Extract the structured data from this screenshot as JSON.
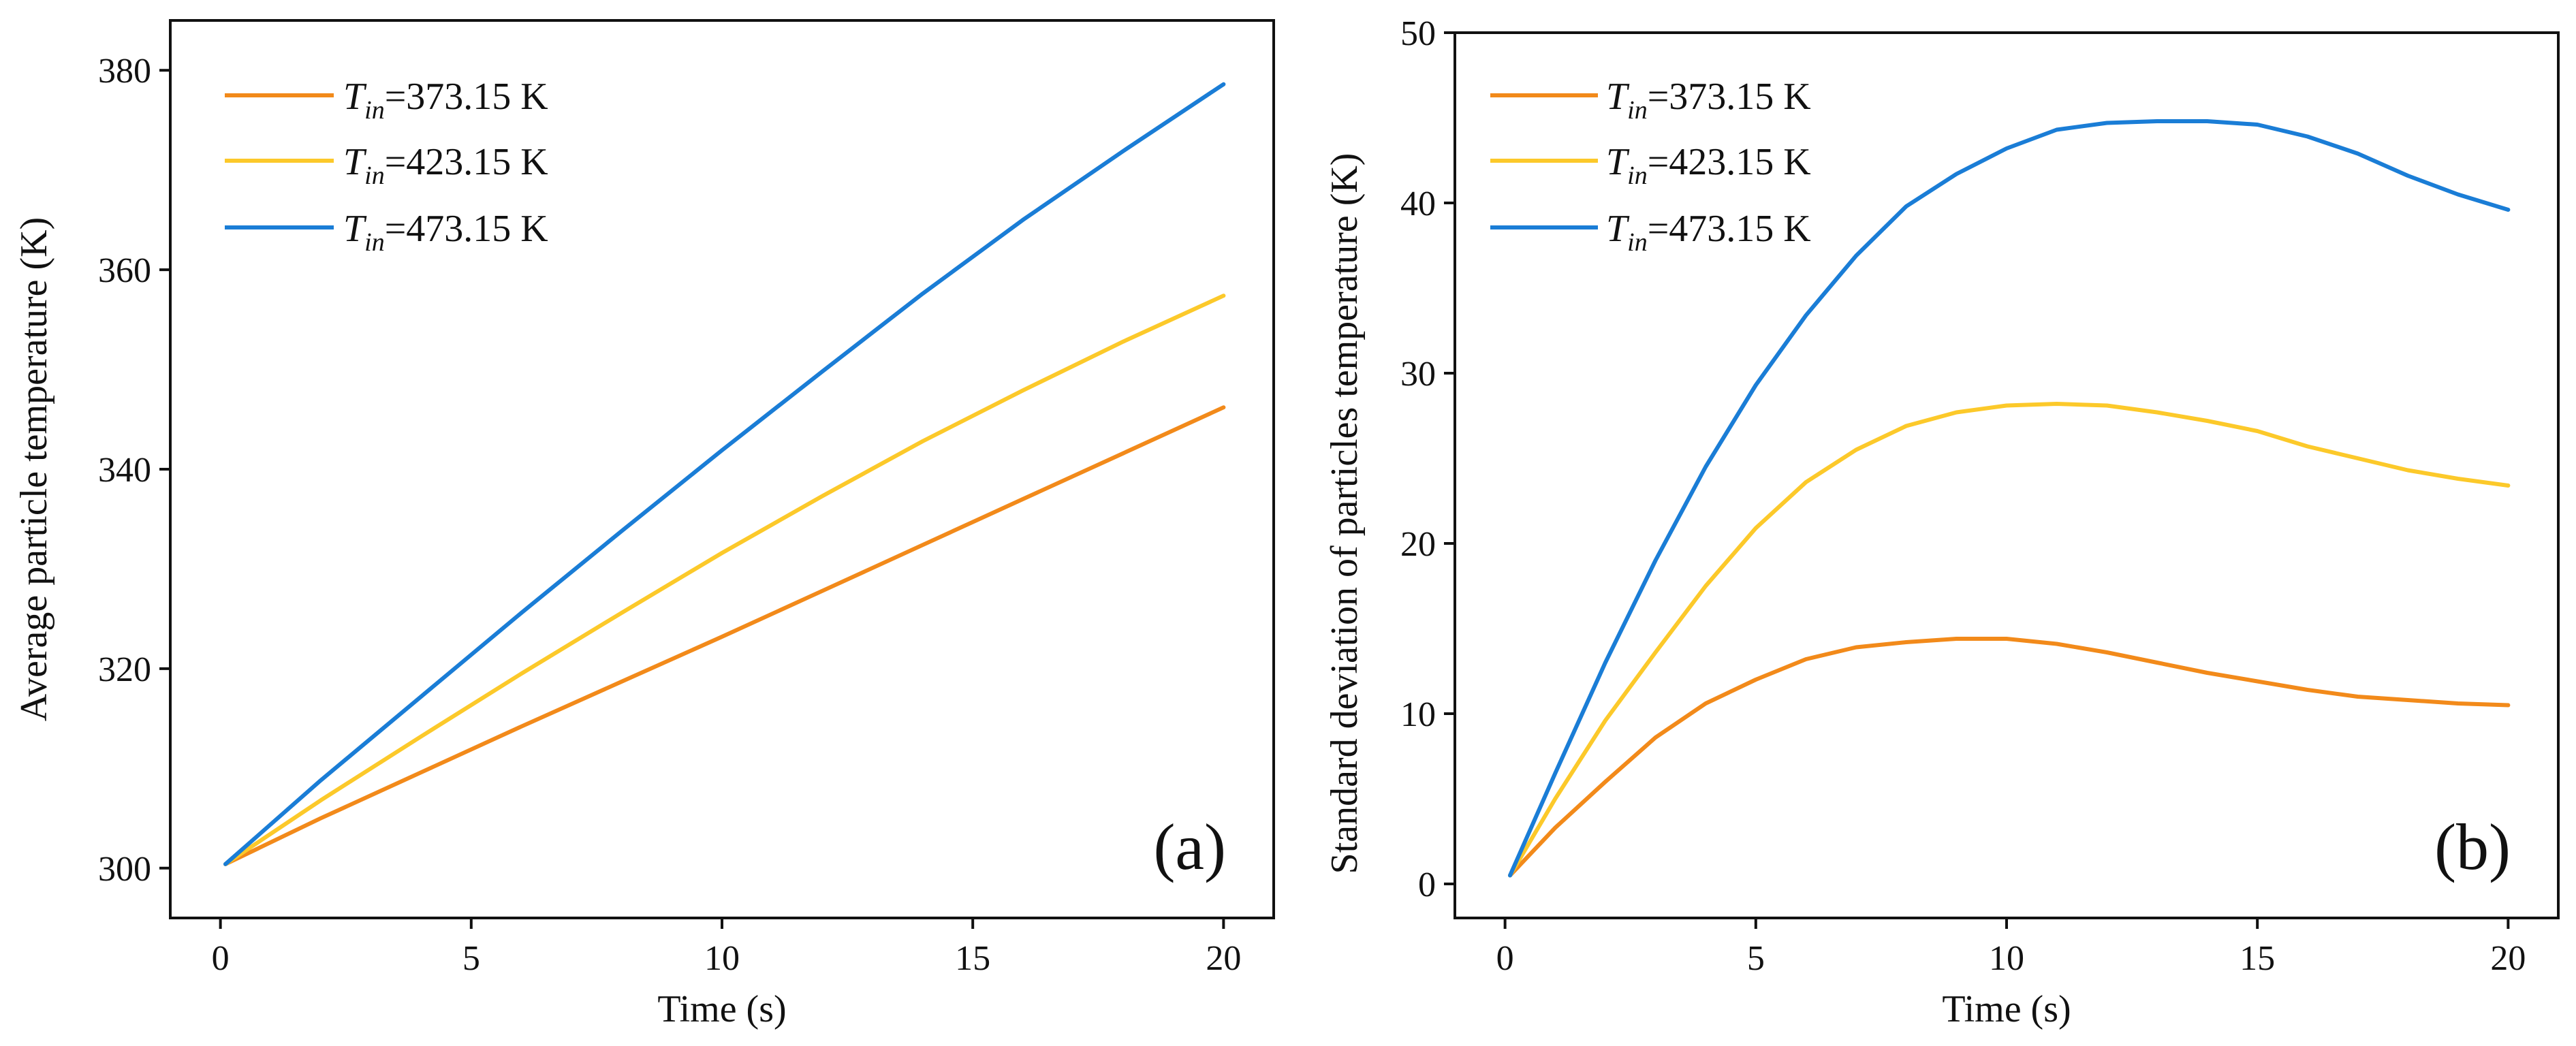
{
  "figure": {
    "panels": [
      "(a)",
      "(b)"
    ]
  },
  "chart_data": [
    {
      "type": "line",
      "panel_label": "(a)",
      "title": "",
      "xlabel": "Time (s)",
      "ylabel": "Average particle temperature  (K)",
      "xlim": [
        -1,
        21
      ],
      "ylim": [
        295,
        385
      ],
      "xticks": [
        0,
        5,
        10,
        15,
        20
      ],
      "yticks": [
        300,
        320,
        340,
        360,
        380
      ],
      "grid": false,
      "legend_position": "top-left",
      "x": [
        0.1,
        2,
        4,
        6,
        8,
        10,
        12,
        14,
        16,
        18,
        20
      ],
      "series": [
        {
          "name": "T_in=373.15 K",
          "legend_symbol": "T",
          "legend_subscript": "in",
          "legend_value": "=373.15 K",
          "color": "#f28a1a",
          "values": [
            300.4,
            305.0,
            309.6,
            314.2,
            318.7,
            323.2,
            327.8,
            332.4,
            337.0,
            341.6,
            346.2
          ]
        },
        {
          "name": "T_in=423.15 K",
          "legend_symbol": "T",
          "legend_subscript": "in",
          "legend_value": "=423.15 K",
          "color": "#fcc92a",
          "values": [
            300.4,
            306.8,
            313.2,
            319.5,
            325.6,
            331.6,
            337.3,
            342.8,
            347.9,
            352.8,
            357.4
          ]
        },
        {
          "name": "T_in=473.15 K",
          "legend_symbol": "T",
          "legend_subscript": "in",
          "legend_value": "=473.15 K",
          "color": "#1a7dd6",
          "values": [
            300.4,
            308.8,
            317.2,
            325.6,
            333.8,
            341.9,
            349.8,
            357.6,
            365.0,
            371.9,
            378.6
          ]
        }
      ]
    },
    {
      "type": "line",
      "panel_label": "(b)",
      "title": "",
      "xlabel": "Time (s)",
      "ylabel": "Standard deviation of particles temperature (K)",
      "xlim": [
        -1,
        21
      ],
      "ylim": [
        -2,
        50
      ],
      "xticks": [
        0,
        5,
        10,
        15,
        20
      ],
      "yticks": [
        0,
        10,
        20,
        30,
        40,
        50
      ],
      "grid": false,
      "legend_position": "top-left",
      "x": [
        0.1,
        1,
        2,
        3,
        4,
        5,
        6,
        7,
        8,
        9,
        10,
        11,
        12,
        13,
        14,
        15,
        16,
        17,
        18,
        19,
        20
      ],
      "series": [
        {
          "name": "T_in=373.15 K",
          "legend_symbol": "T",
          "legend_subscript": "in",
          "legend_value": "=373.15 K",
          "color": "#f28a1a",
          "values": [
            0.5,
            3.3,
            6.0,
            8.6,
            10.6,
            12.0,
            13.2,
            13.9,
            14.2,
            14.4,
            14.4,
            14.1,
            13.6,
            13.0,
            12.4,
            11.9,
            11.4,
            11.0,
            10.8,
            10.6,
            10.5
          ]
        },
        {
          "name": "T_in=423.15 K",
          "legend_symbol": "T",
          "legend_subscript": "in",
          "legend_value": "=423.15 K",
          "color": "#fcc92a",
          "values": [
            0.5,
            5.0,
            9.6,
            13.6,
            17.5,
            20.9,
            23.6,
            25.5,
            26.9,
            27.7,
            28.1,
            28.2,
            28.1,
            27.7,
            27.2,
            26.6,
            25.7,
            25.0,
            24.3,
            23.8,
            23.4
          ]
        },
        {
          "name": "T_in=473.15 K",
          "legend_symbol": "T",
          "legend_subscript": "in",
          "legend_value": "=473.15 K",
          "color": "#1a7dd6",
          "values": [
            0.5,
            6.5,
            13.0,
            19.0,
            24.5,
            29.3,
            33.4,
            36.9,
            39.8,
            41.7,
            43.2,
            44.3,
            44.7,
            44.8,
            44.8,
            44.6,
            43.9,
            42.9,
            41.6,
            40.5,
            39.6
          ]
        }
      ]
    }
  ]
}
